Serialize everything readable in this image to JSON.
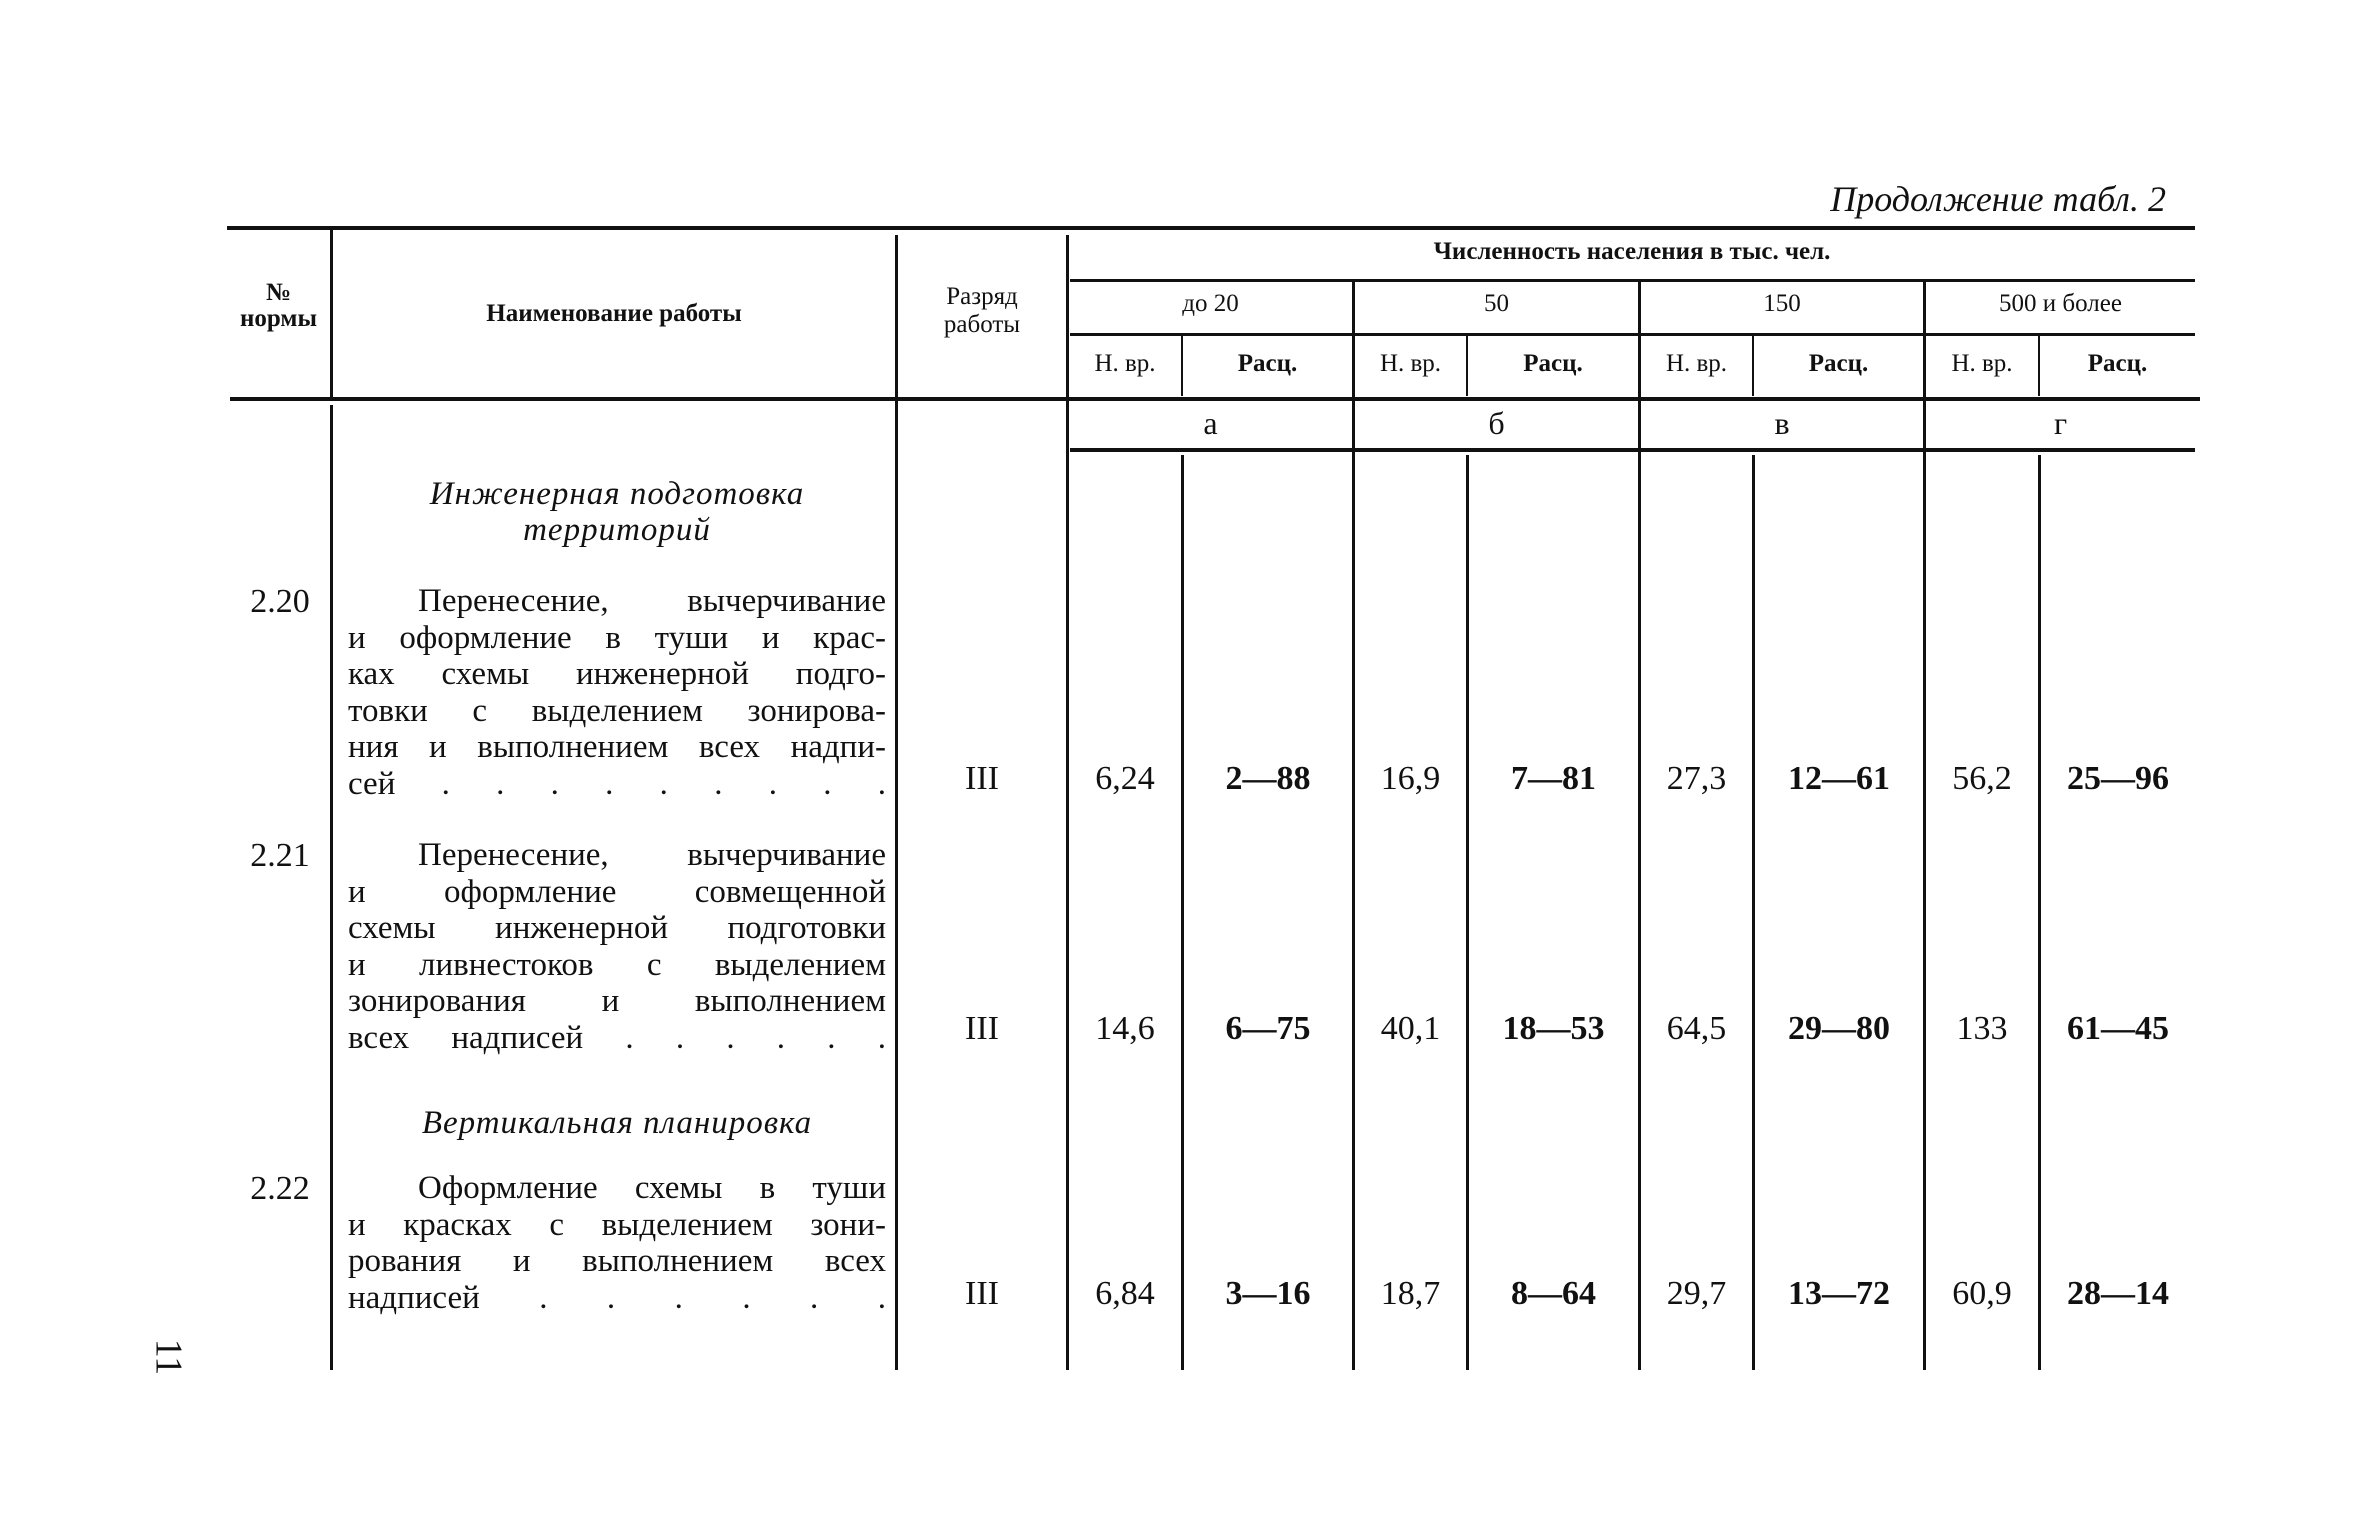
{
  "caption": "Продолжение табл. 2",
  "page_number": "11",
  "header": {
    "norm_no": [
      "№",
      "нормы"
    ],
    "work_name": "Наименование работы",
    "grade": [
      "Разряд",
      "работы"
    ],
    "population": "Численность населения в тыс. чел.",
    "groups": [
      "до 20",
      "50",
      "150",
      "500 и более"
    ],
    "sub_time": "Н. вр.",
    "sub_rate": "Расц.",
    "letters": [
      "а",
      "б",
      "в",
      "г"
    ]
  },
  "sections": [
    {
      "title": [
        "Инженерная подготовка",
        "территорий"
      ]
    },
    {
      "title": [
        "Вертикальная планировка"
      ]
    }
  ],
  "rows": [
    {
      "no": "2.20",
      "work_lines": [
        "Перенесение, вычерчивание",
        "и оформление в туши и крас-",
        "ках схемы инженерной подго-",
        "товки с выделением зонирова-",
        "ния и выполнением всех надпи-",
        "сей . . . . . . . . ."
      ],
      "grade": "III",
      "values": [
        "6,24",
        "2—88",
        "16,9",
        "7—81",
        "27,3",
        "12—61",
        "56,2",
        "25—96"
      ]
    },
    {
      "no": "2.21",
      "work_lines": [
        "Перенесение, вычерчивание",
        "и оформление совмещенной",
        "схемы инженерной подготовки",
        "и ливнестоков с выделением",
        "зонирования и выполнением",
        "всех надписей . . . . . ."
      ],
      "grade": "III",
      "values": [
        "14,6",
        "6—75",
        "40,1",
        "18—53",
        "64,5",
        "29—80",
        "133",
        "61—45"
      ]
    },
    {
      "no": "2.22",
      "work_lines": [
        "Оформление схемы в туши",
        "и красках с выделением зони-",
        "рования и выполнением всех",
        "надписей . . . . . ."
      ],
      "grade": "III",
      "values": [
        "6,84",
        "3—16",
        "18,7",
        "8—64",
        "29,7",
        "13—72",
        "60,9",
        "28—14"
      ]
    }
  ]
}
